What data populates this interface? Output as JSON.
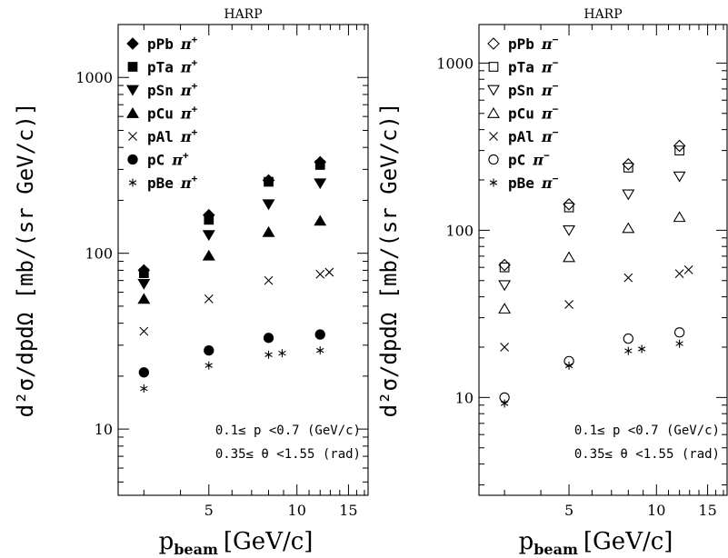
{
  "chart_data": [
    {
      "type": "scatter",
      "title": "HARP",
      "xlabel_main": "p",
      "xlabel_sub": "beam",
      "xlabel_unit": "[GeV/c]",
      "ylabel": "d²σ/dpdΩ [mb/(sr GeV/c)]",
      "x_scale": "log",
      "y_scale": "log",
      "xlim": [
        2.45,
        17.5
      ],
      "ylim": [
        4.2,
        2000
      ],
      "x_ticks": [
        {
          "value": 5,
          "label": "5"
        },
        {
          "value": 10,
          "label": "10"
        },
        {
          "value": 15,
          "label": "15"
        }
      ],
      "y_ticks": [
        {
          "value": 10,
          "label": "10"
        },
        {
          "value": 100,
          "label": "100"
        },
        {
          "value": 1000,
          "label": "1000"
        }
      ],
      "legend_position": "top-left",
      "annotation_lines": [
        "0.1≤ p <0.7  (GeV/c)",
        "0.35≤ θ <1.55  (rad)"
      ],
      "series": [
        {
          "target": "pPb",
          "particle": "π",
          "charge": "+",
          "marker": "diamond-filled",
          "x": [
            3,
            5,
            8,
            12
          ],
          "y": [
            80,
            165,
            260,
            330
          ]
        },
        {
          "target": "pTa",
          "particle": "π",
          "charge": "+",
          "marker": "square-filled",
          "x": [
            3,
            5,
            8,
            12
          ],
          "y": [
            77,
            155,
            255,
            318
          ]
        },
        {
          "target": "pSn",
          "particle": "π",
          "charge": "+",
          "marker": "triangle-down-filled",
          "x": [
            3,
            5,
            8,
            12
          ],
          "y": [
            67,
            127,
            190,
            250
          ]
        },
        {
          "target": "pCu",
          "particle": "π",
          "charge": "+",
          "marker": "triangle-up-filled",
          "x": [
            3,
            5,
            8,
            12
          ],
          "y": [
            55,
            97,
            132,
            153
          ]
        },
        {
          "target": "pAl",
          "particle": "π",
          "charge": "+",
          "marker": "cross",
          "x": [
            3,
            5,
            8,
            12,
            12.9
          ],
          "y": [
            36,
            55,
            70,
            76,
            78
          ]
        },
        {
          "target": "pC",
          "particle": "π",
          "charge": "+",
          "marker": "circle-filled",
          "x": [
            3,
            5,
            8,
            12
          ],
          "y": [
            21,
            28,
            33,
            34.5
          ]
        },
        {
          "target": "pBe",
          "particle": "π",
          "charge": "+",
          "marker": "asterisk",
          "x": [
            3,
            5,
            8,
            8.9,
            12
          ],
          "y": [
            17,
            23,
            26.5,
            27,
            28
          ]
        }
      ]
    },
    {
      "type": "scatter",
      "title": "HARP",
      "xlabel_main": "p",
      "xlabel_sub": "beam",
      "xlabel_unit": "[GeV/c]",
      "ylabel": "d²σ/dpdΩ [mb/(sr GeV/c)]",
      "x_scale": "log",
      "y_scale": "log",
      "xlim": [
        2.45,
        17.5
      ],
      "ylim": [
        2.6,
        1700
      ],
      "x_ticks": [
        {
          "value": 5,
          "label": "5"
        },
        {
          "value": 10,
          "label": "10"
        },
        {
          "value": 15,
          "label": "15"
        }
      ],
      "y_ticks": [
        {
          "value": 10,
          "label": "10"
        },
        {
          "value": 100,
          "label": "100"
        },
        {
          "value": 1000,
          "label": "1000"
        }
      ],
      "legend_position": "top-left",
      "annotation_lines": [
        "0.1≤ p <0.7  (GeV/c)",
        "0.35≤ θ <1.55  (rad)"
      ],
      "series": [
        {
          "target": "pPb",
          "particle": "π",
          "charge": "−",
          "marker": "diamond-open",
          "x": [
            3,
            5,
            8,
            12
          ],
          "y": [
            62,
            143,
            248,
            320
          ]
        },
        {
          "target": "pTa",
          "particle": "π",
          "charge": "−",
          "marker": "square-open",
          "x": [
            3,
            5,
            8,
            12
          ],
          "y": [
            60,
            137,
            237,
            300
          ]
        },
        {
          "target": "pSn",
          "particle": "π",
          "charge": "−",
          "marker": "triangle-down-open",
          "x": [
            3,
            5,
            8,
            12
          ],
          "y": [
            47,
            100,
            164,
            210
          ]
        },
        {
          "target": "pCu",
          "particle": "π",
          "charge": "−",
          "marker": "triangle-up-open",
          "x": [
            3,
            5,
            8,
            12
          ],
          "y": [
            34,
            69,
            103,
            120
          ]
        },
        {
          "target": "pAl",
          "particle": "π",
          "charge": "−",
          "marker": "cross",
          "x": [
            3,
            5,
            8,
            12,
            12.9
          ],
          "y": [
            20,
            36,
            52,
            55,
            58
          ]
        },
        {
          "target": "pC",
          "particle": "π",
          "charge": "−",
          "marker": "circle-open",
          "x": [
            3,
            5,
            8,
            12
          ],
          "y": [
            10,
            16.5,
            22.5,
            24.5
          ]
        },
        {
          "target": "pBe",
          "particle": "π",
          "charge": "−",
          "marker": "asterisk",
          "x": [
            3,
            5,
            8,
            8.9,
            12
          ],
          "y": [
            9.2,
            15.5,
            19,
            19.5,
            21
          ]
        }
      ]
    }
  ]
}
